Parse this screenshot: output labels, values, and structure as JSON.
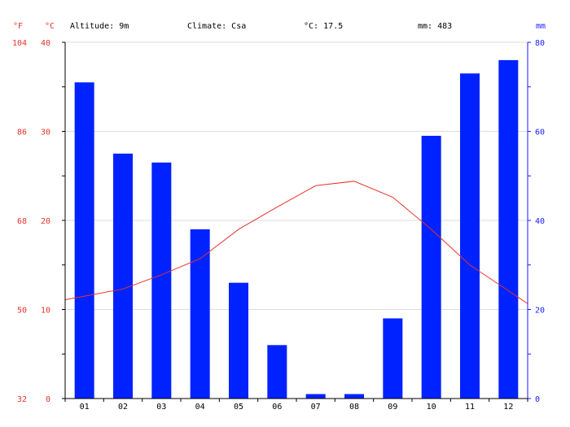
{
  "header": {
    "altitude": "Altitude: 9m",
    "climate": "Climate: Csa",
    "temp_mean": "°C: 17.5",
    "precip_total": "mm: 483"
  },
  "units": {
    "fahrenheit": "°F",
    "celsius": "°C",
    "mm": "mm"
  },
  "colors": {
    "precip_bar": "#0022ff",
    "temp_line": "#e8332a",
    "temp_axis": "#e8332a",
    "precip_axis": "#1a1aff",
    "grid": "#dddddd"
  },
  "chart_data": {
    "type": "bar",
    "categories": [
      "01",
      "02",
      "03",
      "04",
      "05",
      "06",
      "07",
      "08",
      "09",
      "10",
      "11",
      "12"
    ],
    "series": [
      {
        "type": "bar",
        "axis": "right",
        "values": [
          71,
          55,
          53,
          38,
          26,
          12,
          1,
          1,
          18,
          59,
          73,
          76
        ]
      },
      {
        "type": "line",
        "axis": "left",
        "values": [
          11.5,
          12.3,
          13.9,
          15.7,
          19.0,
          21.5,
          23.9,
          24.4,
          22.6,
          19.0,
          15.0,
          12.1
        ]
      }
    ],
    "temperature_axis": {
      "celsius_ticks": [
        "0",
        "10",
        "20",
        "30",
        "40"
      ],
      "fahrenheit_ticks": [
        "32",
        "50",
        "68",
        "86",
        "104"
      ],
      "range": [
        0,
        40
      ]
    },
    "precipitation_axis": {
      "ticks": [
        "0",
        "20",
        "40",
        "60",
        "80"
      ],
      "range": [
        0,
        80
      ]
    },
    "grid": true
  }
}
